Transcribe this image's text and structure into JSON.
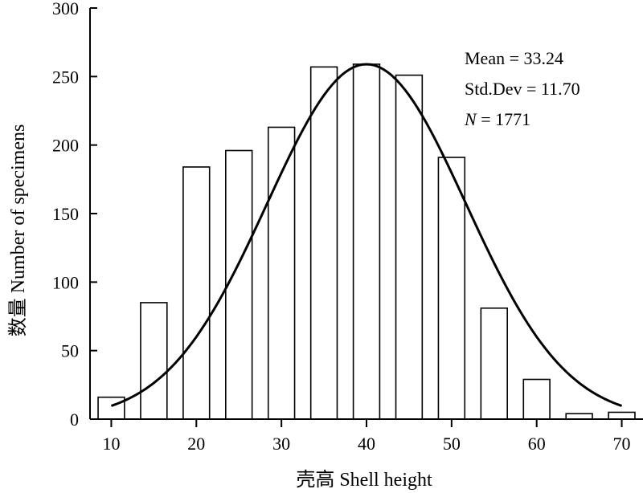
{
  "chart_data": {
    "type": "bar",
    "xlabel": "壳高 Shell height",
    "ylabel": "数量 Number of specimens",
    "xlim": [
      7.5,
      72.5
    ],
    "ylim": [
      0,
      300
    ],
    "x_ticks": [
      10,
      20,
      30,
      40,
      50,
      60,
      70
    ],
    "y_ticks": [
      0,
      50,
      100,
      150,
      200,
      250,
      300
    ],
    "bars": [
      {
        "x": 10,
        "value": 16
      },
      {
        "x": 15,
        "value": 85
      },
      {
        "x": 20,
        "value": 184
      },
      {
        "x": 25,
        "value": 196
      },
      {
        "x": 30,
        "value": 213
      },
      {
        "x": 35,
        "value": 257
      },
      {
        "x": 40,
        "value": 259
      },
      {
        "x": 45,
        "value": 251
      },
      {
        "x": 50,
        "value": 191
      },
      {
        "x": 55,
        "value": 81
      },
      {
        "x": 60,
        "value": 29
      },
      {
        "x": 65,
        "value": 4
      },
      {
        "x": 70,
        "value": 5
      }
    ],
    "bin_width": 5,
    "fit_curve": {
      "type": "normal",
      "peak_x": 40,
      "peak_y": 259,
      "sigma_x": 11.7,
      "x_range": [
        10,
        70
      ]
    },
    "stats": {
      "mean_label": "Mean = 33.24",
      "std_label": "Std.Dev = 11.70",
      "n_symbol": "N",
      "n_text": " = 1771"
    },
    "colors": {
      "bar_fill": "#ffffff",
      "bar_stroke": "#000000",
      "curve": "#000000",
      "axis": "#000000"
    }
  }
}
